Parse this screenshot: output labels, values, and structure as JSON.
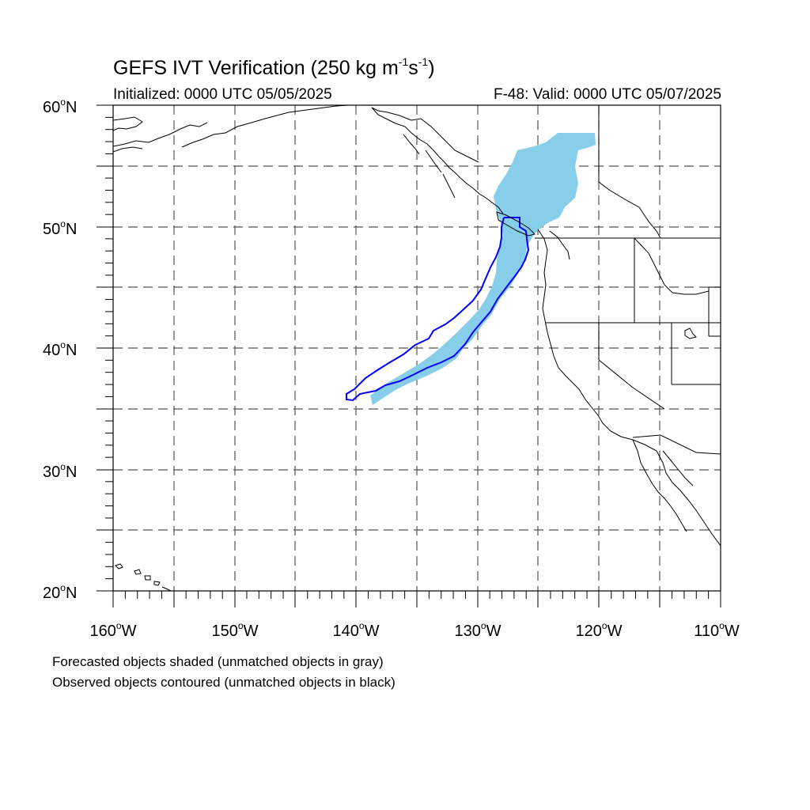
{
  "header": {
    "title_main": "GEFS IVT Verification (250 kg m",
    "title_sup1": "-1",
    "title_mid": "s",
    "title_sup2": "-1",
    "title_end": ")",
    "init": "Initialized: 0000 UTC 05/05/2025",
    "valid": "F-48: Valid: 0000 UTC 05/07/2025"
  },
  "axes": {
    "lat_labels": [
      {
        "num": "60",
        "deg": "o",
        "hem": "N"
      },
      {
        "num": "50",
        "deg": "o",
        "hem": "N"
      },
      {
        "num": "40",
        "deg": "o",
        "hem": "N"
      },
      {
        "num": "30",
        "deg": "o",
        "hem": "N"
      },
      {
        "num": "20",
        "deg": "o",
        "hem": "N"
      }
    ],
    "lon_labels": [
      {
        "num": "160",
        "deg": "o",
        "hem": "W"
      },
      {
        "num": "150",
        "deg": "o",
        "hem": "W"
      },
      {
        "num": "140",
        "deg": "o",
        "hem": "W"
      },
      {
        "num": "130",
        "deg": "o",
        "hem": "W"
      },
      {
        "num": "120",
        "deg": "o",
        "hem": "W"
      },
      {
        "num": "110",
        "deg": "o",
        "hem": "W"
      }
    ],
    "lat_range": [
      20,
      60
    ],
    "lon_range": [
      -160,
      -110
    ],
    "grid_spacing_deg": 5,
    "grid": "dashed"
  },
  "footnotes": {
    "line1": "Forecasted objects shaded (unmatched objects in gray)",
    "line2": "Observed objects contoured (unmatched objects in black)"
  },
  "colors": {
    "forecast_fill": "#87ceeb",
    "observed_contour": "#0000ff",
    "coastline": "#000000",
    "grid": "#555555"
  }
}
